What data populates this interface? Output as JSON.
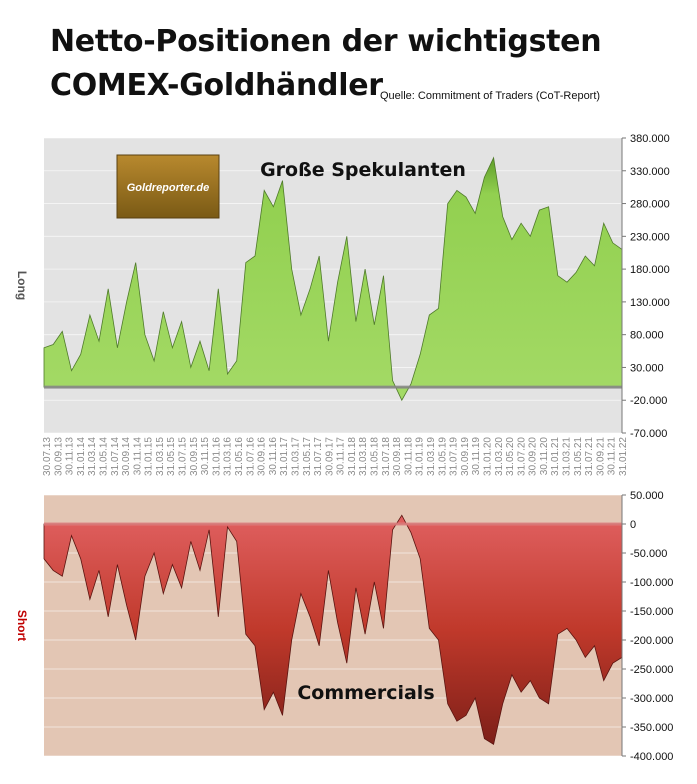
{
  "title_line1": "Netto-Positionen der wichtigsten",
  "title_line2": "COMEX-Goldhändler",
  "source": "Quelle: Commitment of Traders (CoT-Report)",
  "logo_text": "Goldreporter.de",
  "colors": {
    "long_fill": "#92d050",
    "long_bg": "#e3e3e3",
    "short_fill": "#c0392b",
    "short_bg": "#e3c6b4",
    "long_axis_label": "#555555",
    "short_axis_label": "#c00000"
  },
  "chart_data": [
    {
      "type": "area",
      "annotation": "Große Spekulanten",
      "ylabel": "Long",
      "ylim": [
        -70000,
        380000
      ],
      "yticks": [
        "380.000",
        "330.000",
        "280.000",
        "230.000",
        "180.000",
        "130.000",
        "80.000",
        "30.000",
        "-20.000",
        "-70.000"
      ],
      "x_labels": [
        "30.07.13",
        "30.09.13",
        "30.11.13",
        "31.01.14",
        "31.03.14",
        "31.05.14",
        "31.07.14",
        "30.09.14",
        "30.11.14",
        "31.01.15",
        "31.03.15",
        "31.05.15",
        "31.07.15",
        "30.09.15",
        "30.11.15",
        "31.01.16",
        "31.03.16",
        "31.05.16",
        "31.07.16",
        "30.09.16",
        "30.11.16",
        "31.01.17",
        "31.03.17",
        "31.05.17",
        "31.07.17",
        "30.09.17",
        "30.11.17",
        "31.01.18",
        "31.03.18",
        "31.05.18",
        "31.07.18",
        "30.09.18",
        "30.11.18",
        "31.01.19",
        "31.03.19",
        "31.05.19",
        "31.07.19",
        "30.09.19",
        "30.11.19",
        "31.01.20",
        "31.03.20",
        "31.05.20",
        "31.07.20",
        "30.09.20",
        "30.11.20",
        "31.01.21",
        "31.03.21",
        "31.05.21",
        "31.07.21",
        "30.09.21",
        "30.11.21",
        "31.01.22"
      ],
      "values": [
        60000,
        65000,
        85000,
        25000,
        50000,
        110000,
        70000,
        150000,
        60000,
        130000,
        190000,
        80000,
        40000,
        115000,
        60000,
        100000,
        30000,
        70000,
        25000,
        150000,
        20000,
        40000,
        190000,
        200000,
        300000,
        275000,
        315000,
        180000,
        110000,
        150000,
        200000,
        70000,
        160000,
        230000,
        100000,
        180000,
        95000,
        170000,
        10000,
        -20000,
        5000,
        50000,
        110000,
        120000,
        280000,
        300000,
        290000,
        265000,
        320000,
        350000,
        260000,
        225000,
        250000,
        230000,
        270000,
        275000,
        170000,
        160000,
        175000,
        200000,
        185000,
        250000,
        220000,
        210000
      ],
      "grid": true
    },
    {
      "type": "area",
      "annotation": "Commercials",
      "ylabel": "Short",
      "ylim": [
        -400000,
        50000
      ],
      "yticks": [
        "50.000",
        "0",
        "-50.000",
        "-100.000",
        "-150.000",
        "-200.000",
        "-250.000",
        "-300.000",
        "-350.000",
        "-400.000"
      ],
      "values": [
        -60000,
        -80000,
        -90000,
        -20000,
        -60000,
        -130000,
        -80000,
        -160000,
        -70000,
        -140000,
        -200000,
        -90000,
        -50000,
        -120000,
        -70000,
        -110000,
        -30000,
        -80000,
        -10000,
        -160000,
        -5000,
        -30000,
        -190000,
        -210000,
        -320000,
        -290000,
        -330000,
        -200000,
        -120000,
        -160000,
        -210000,
        -80000,
        -170000,
        -240000,
        -110000,
        -190000,
        -100000,
        -180000,
        -10000,
        15000,
        -15000,
        -60000,
        -180000,
        -200000,
        -310000,
        -340000,
        -330000,
        -300000,
        -370000,
        -380000,
        -310000,
        -260000,
        -290000,
        -270000,
        -300000,
        -310000,
        -190000,
        -180000,
        -200000,
        -230000,
        -210000,
        -270000,
        -240000,
        -230000
      ],
      "grid": true
    }
  ]
}
